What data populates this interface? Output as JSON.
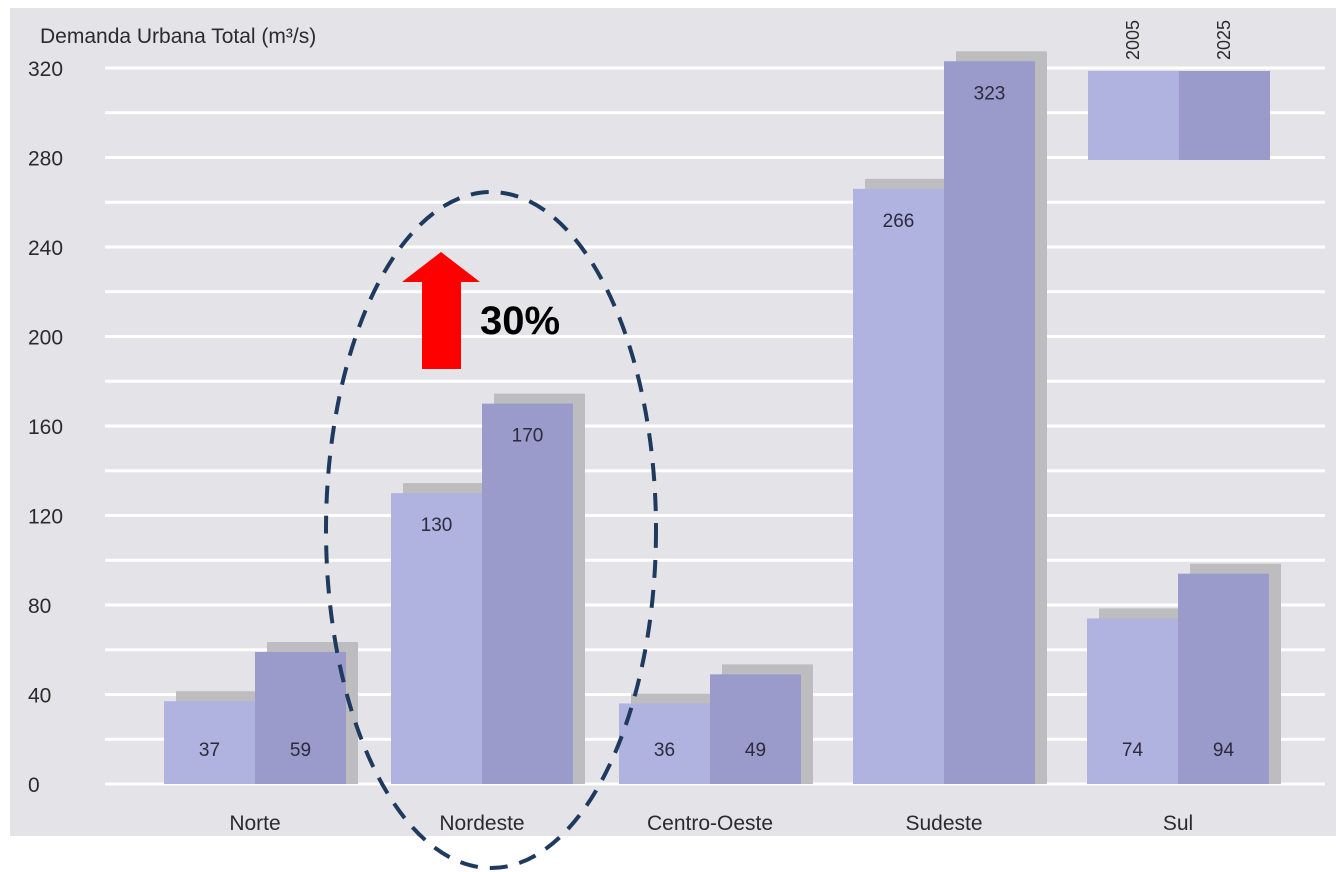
{
  "chart_data": {
    "type": "bar",
    "ylabel": "Demanda Urbana Total (m³/s)",
    "ylim": [
      0,
      320
    ],
    "yticks": [
      0,
      40,
      80,
      120,
      160,
      200,
      240,
      280,
      320
    ],
    "grid": true,
    "categories": [
      "Norte",
      "Nordeste",
      "Centro-Oeste",
      "Sudeste",
      "Sul"
    ],
    "series": [
      {
        "name": "2005",
        "values": [
          37,
          130,
          36,
          266,
          74
        ],
        "color": "#b0b2e0"
      },
      {
        "name": "2025",
        "values": [
          59,
          170,
          49,
          323,
          94
        ],
        "color": "#9a9acb"
      }
    ],
    "legend_position": "top-right",
    "annotation": {
      "text": "30%",
      "highlight_category": "Nordeste",
      "arrow_direction": "up",
      "arrow_color": "#ff0000",
      "ellipse_color": "#1f3a5f"
    }
  },
  "colors": {
    "plot_background": "#e4e4e8",
    "gridline": "#ffffff",
    "bar_shadow": "#bdbdc0"
  }
}
